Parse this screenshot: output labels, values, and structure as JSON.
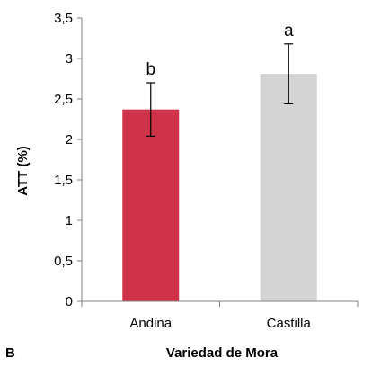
{
  "chart_data": {
    "type": "bar",
    "categories": [
      "Andina",
      "Castilla"
    ],
    "values": [
      2.37,
      2.81
    ],
    "error": [
      0.33,
      0.37
    ],
    "significance": [
      "b",
      "a"
    ],
    "colors": [
      "#cf334a",
      "#d4d4d4"
    ],
    "ylim": [
      0,
      3.5
    ],
    "yticks": [
      "0",
      "0,5",
      "1",
      "1,5",
      "2",
      "2,5",
      "3",
      "3,5"
    ],
    "ytick_values": [
      0,
      0.5,
      1,
      1.5,
      2,
      2.5,
      3,
      3.5
    ],
    "xlabel": "Variedad de Mora",
    "ylabel": "ATT (%)",
    "grid": false,
    "panel_label": "B"
  }
}
